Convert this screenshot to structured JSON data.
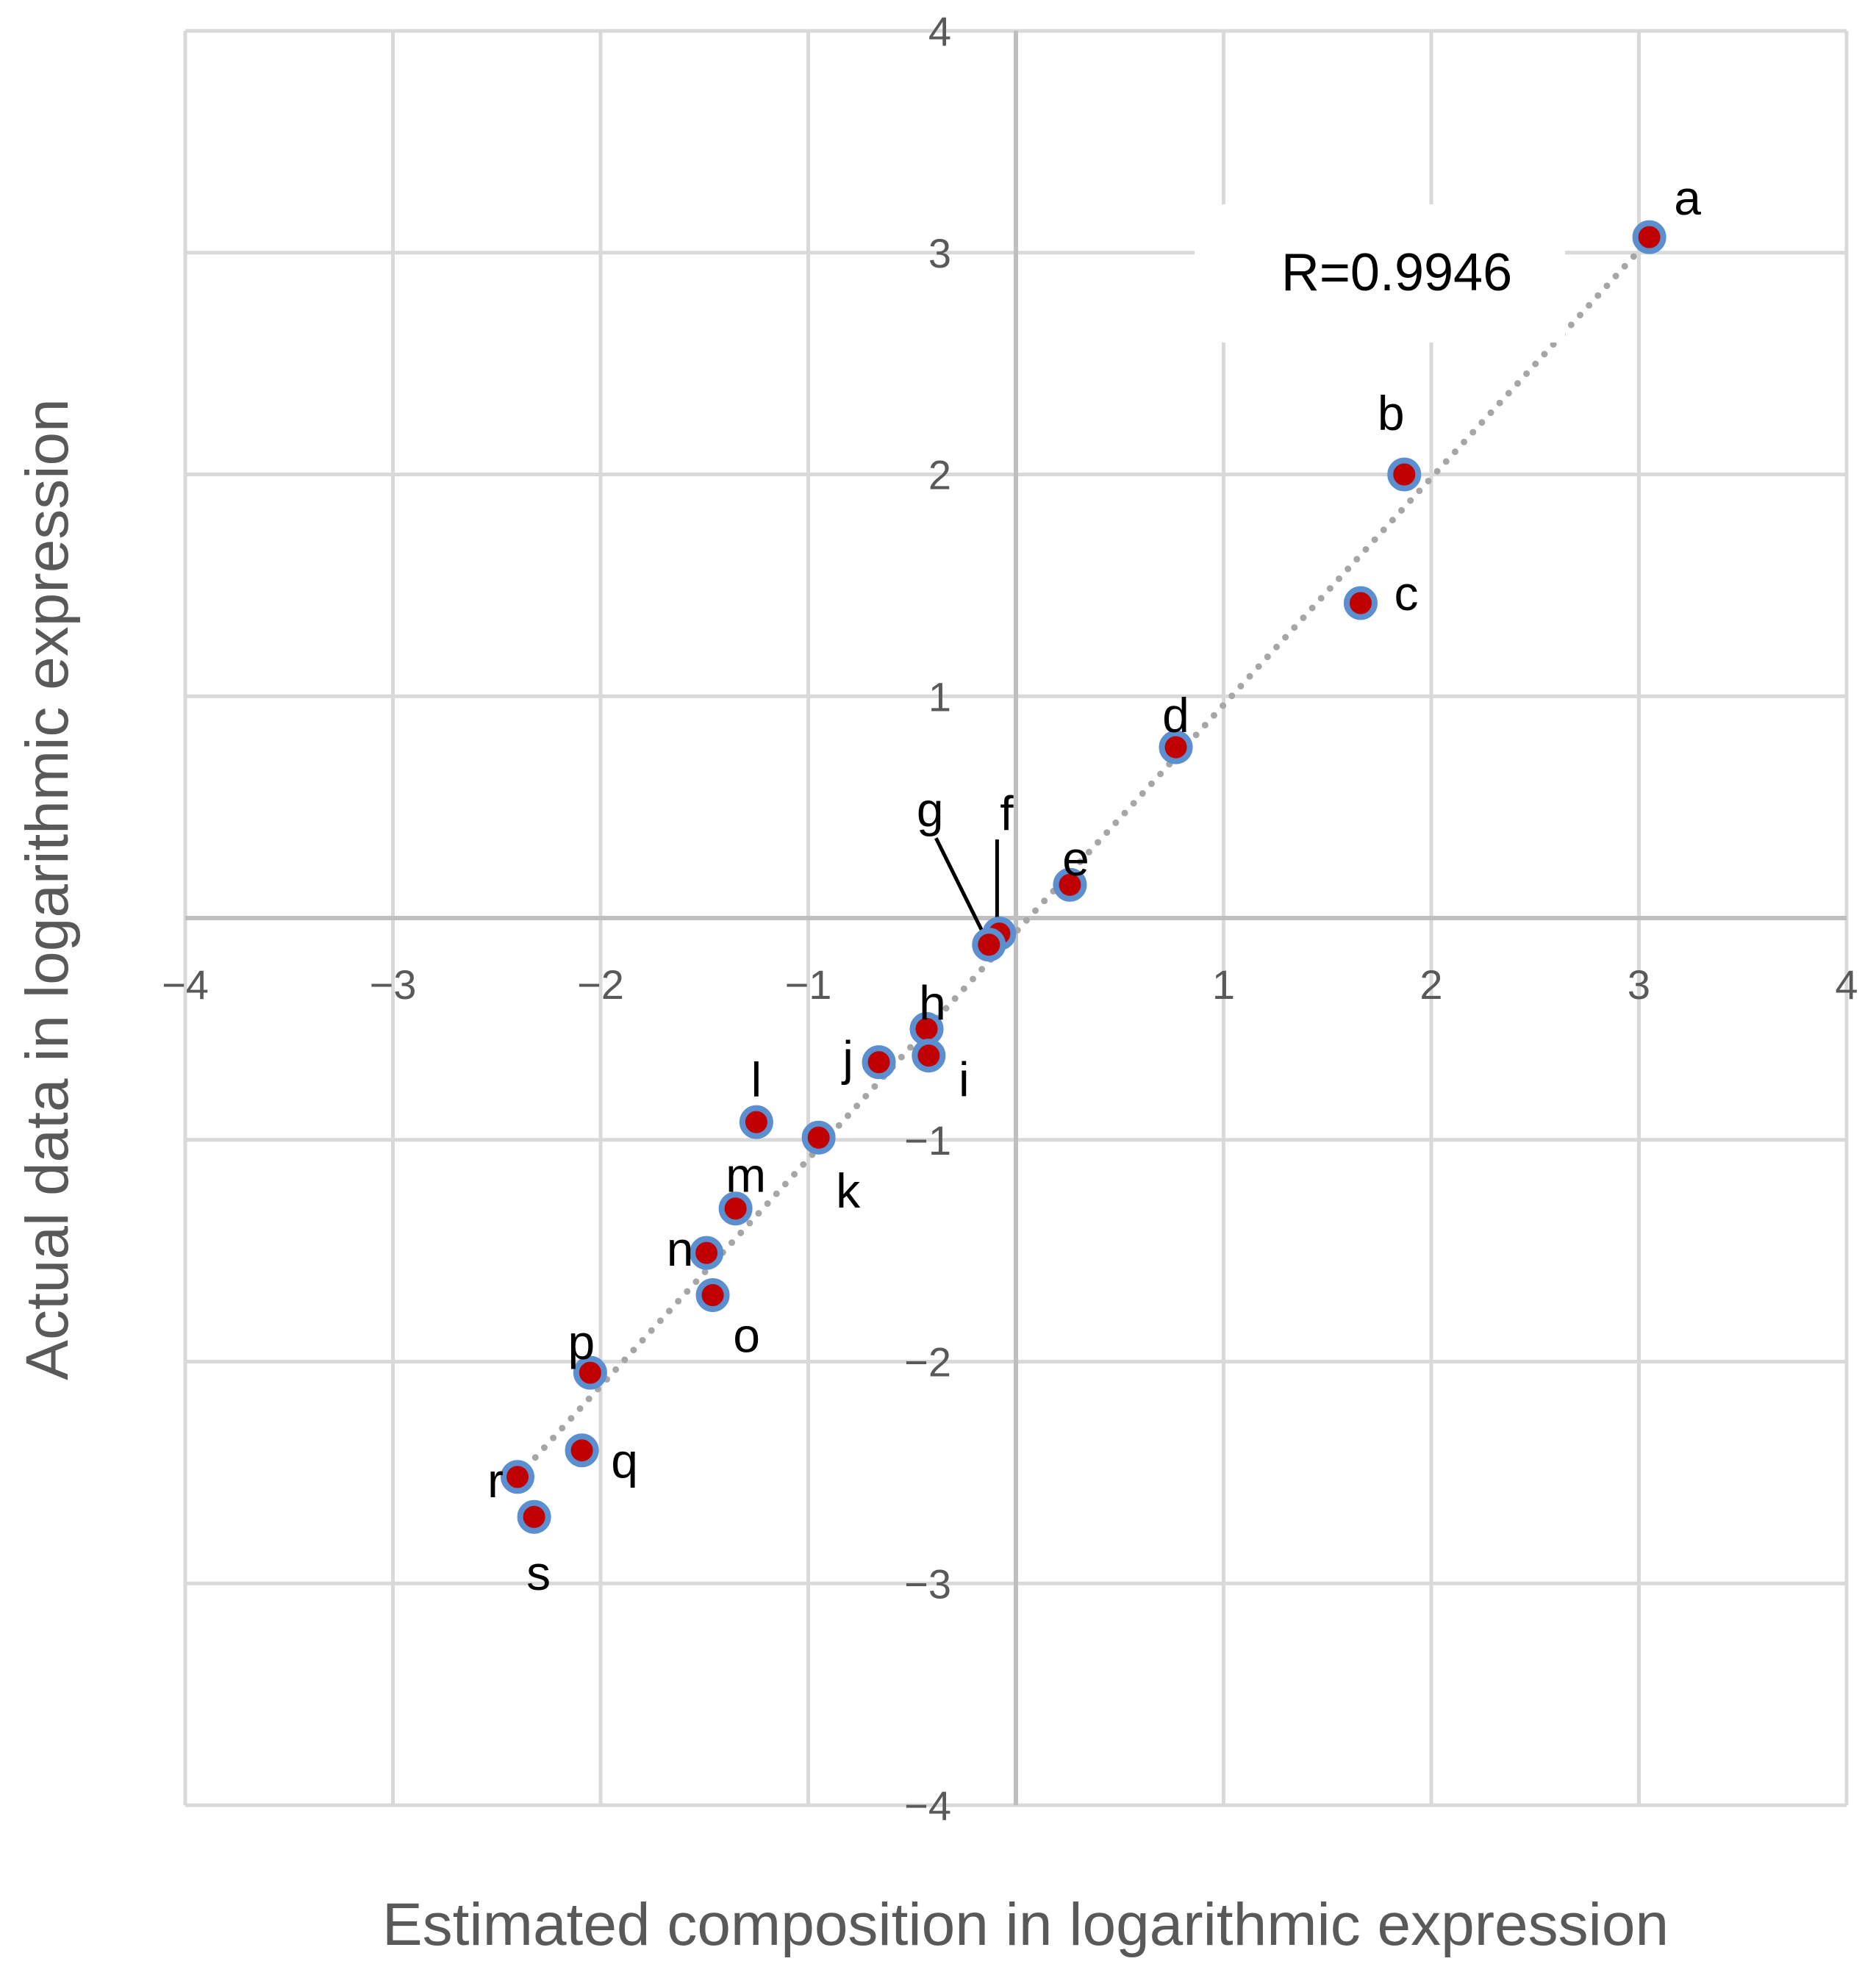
{
  "chart_data": {
    "type": "scatter",
    "title": "",
    "xlabel": "Estimated composition in logarithmic expression",
    "ylabel": "Actual data in logarithmic expression",
    "xlim": [
      -4,
      4
    ],
    "ylim": [
      -4,
      4
    ],
    "x_ticks": [
      -4,
      -3,
      -2,
      -1,
      1,
      2,
      3,
      4
    ],
    "y_ticks": [
      4,
      3,
      2,
      1,
      -1,
      -2,
      -3,
      -4
    ],
    "x_tick_labels": [
      "−4",
      "−3",
      "−2",
      "−1",
      "1",
      "2",
      "3",
      "4"
    ],
    "y_tick_labels": [
      "4",
      "3",
      "2",
      "1",
      "−1",
      "−2",
      "−3",
      "−4"
    ],
    "grid": true,
    "legend": "none",
    "annotation": "R=0.9946",
    "trendline": {
      "style": "dotted",
      "x": [
        -2.4,
        3.06
      ],
      "y": [
        -2.52,
        3.07
      ]
    },
    "colors": {
      "marker_fill": "#c00000",
      "marker_edge": "#5b8fd0",
      "grid": "#d9d9d9",
      "axis": "#bfbfbf",
      "trendline": "#a6a6a6",
      "text": "#595959"
    },
    "series": [
      {
        "name": "samples",
        "points": [
          {
            "label": "a",
            "x": 3.05,
            "y": 3.07
          },
          {
            "label": "b",
            "x": 1.87,
            "y": 2.0
          },
          {
            "label": "c",
            "x": 1.66,
            "y": 1.42
          },
          {
            "label": "d",
            "x": 0.77,
            "y": 0.77
          },
          {
            "label": "e",
            "x": 0.26,
            "y": 0.15
          },
          {
            "label": "f",
            "x": -0.08,
            "y": -0.07
          },
          {
            "label": "g",
            "x": -0.13,
            "y": -0.12
          },
          {
            "label": "h",
            "x": -0.43,
            "y": -0.5
          },
          {
            "label": "i",
            "x": -0.42,
            "y": -0.62
          },
          {
            "label": "j",
            "x": -0.66,
            "y": -0.65
          },
          {
            "label": "k",
            "x": -0.95,
            "y": -0.99
          },
          {
            "label": "l",
            "x": -1.25,
            "y": -0.92
          },
          {
            "label": "m",
            "x": -1.35,
            "y": -1.31
          },
          {
            "label": "n",
            "x": -1.49,
            "y": -1.51
          },
          {
            "label": "o",
            "x": -1.46,
            "y": -1.7
          },
          {
            "label": "p",
            "x": -2.05,
            "y": -2.05
          },
          {
            "label": "q",
            "x": -2.09,
            "y": -2.4
          },
          {
            "label": "r",
            "x": -2.4,
            "y": -2.52
          },
          {
            "label": "s",
            "x": -2.32,
            "y": -2.7
          }
        ]
      }
    ]
  }
}
